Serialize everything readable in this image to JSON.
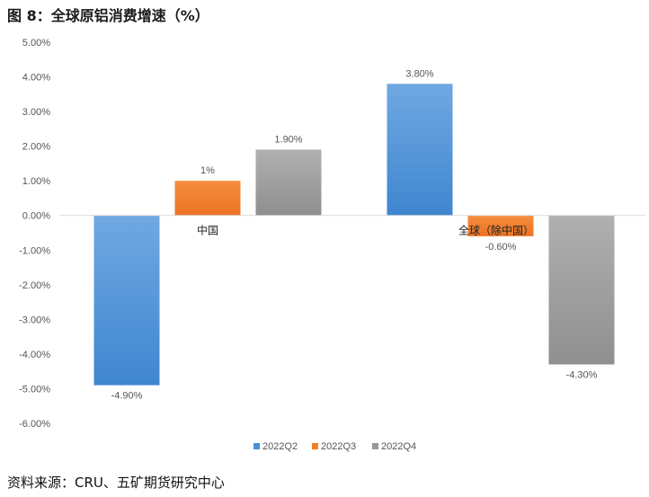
{
  "figure": {
    "title": "图 8：全球原铝消费增速（%）",
    "source": "资料来源：CRU、五矿期货研究中心"
  },
  "chart_data": {
    "type": "bar",
    "categories": [
      "中国",
      "全球（除中国）"
    ],
    "series": [
      {
        "name": "2022Q2",
        "values": [
          -4.9,
          3.8
        ],
        "labels": [
          "-4.90%",
          "3.80%"
        ],
        "color": "#4a8fd6"
      },
      {
        "name": "2022Q3",
        "values": [
          1.0,
          -0.6
        ],
        "labels": [
          "1%",
          "-0.60%"
        ],
        "color": "#f07f2a"
      },
      {
        "name": "2022Q4",
        "values": [
          1.9,
          -4.3
        ],
        "labels": [
          "1.90%",
          "-4.30%"
        ],
        "color": "#999999"
      }
    ],
    "ylim": [
      -6,
      5
    ],
    "yticks": [
      5,
      4,
      3,
      2,
      1,
      0,
      -1,
      -2,
      -3,
      -4,
      -5,
      -6
    ],
    "ytick_labels": [
      "5.00%",
      "4.00%",
      "3.00%",
      "2.00%",
      "1.00%",
      "0.00%",
      "-1.00%",
      "-2.00%",
      "-3.00%",
      "-4.00%",
      "-5.00%",
      "-6.00%"
    ],
    "legend_position": "bottom",
    "grid": false
  }
}
